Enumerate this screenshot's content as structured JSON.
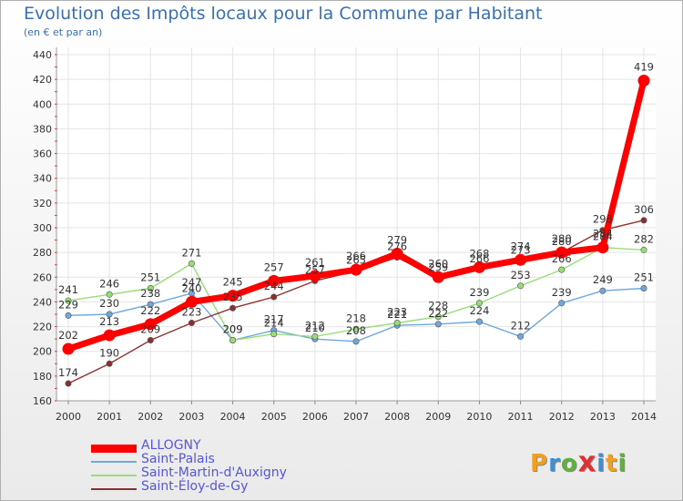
{
  "chart_data": {
    "type": "line",
    "title": "Evolution des Impôts locaux pour la Commune par Habitant",
    "subtitle": "(en € et par an)",
    "xlabel": "",
    "ylabel": "",
    "ylim": [
      160,
      440
    ],
    "yticks": [
      160,
      180,
      200,
      220,
      240,
      260,
      280,
      300,
      320,
      340,
      360,
      380,
      400,
      420,
      440
    ],
    "x": [
      "2000",
      "2001",
      "2002",
      "2003",
      "2004",
      "2005",
      "2006",
      "2007",
      "2008",
      "2009",
      "2010",
      "2011",
      "2012",
      "2013",
      "2014"
    ],
    "grid": true,
    "series": [
      {
        "name": "ALLOGNY",
        "color": "#ff0000",
        "values": [
          202,
          213,
          222,
          240,
          245,
          257,
          261,
          266,
          279,
          260,
          268,
          274,
          280,
          284,
          419
        ]
      },
      {
        "name": "Saint-Palais",
        "color": "#6fa8dc",
        "values": [
          229,
          230,
          238,
          247,
          209,
          217,
          210,
          208,
          221,
          222,
          224,
          212,
          239,
          249,
          251
        ]
      },
      {
        "name": "Saint-Martin-d'Auxigny",
        "color": "#99dd77",
        "values": [
          241,
          246,
          251,
          271,
          209,
          214,
          212,
          218,
          223,
          228,
          239,
          253,
          266,
          284,
          282
        ]
      },
      {
        "name": "Saint-Éloy-de-Gy",
        "color": "#8b3030",
        "values": [
          174,
          190,
          209,
          223,
          235,
          244,
          257,
          265,
          276,
          259,
          266,
          273,
          280,
          298,
          306
        ]
      }
    ]
  },
  "logo": {
    "letters": [
      "P",
      "r",
      "o",
      "x",
      "i",
      "t",
      "i"
    ],
    "colors": [
      "#f0a020",
      "#4090d0",
      "#60b040",
      "#e03030",
      "#4090d0",
      "#f0a020",
      "#60b040"
    ]
  }
}
